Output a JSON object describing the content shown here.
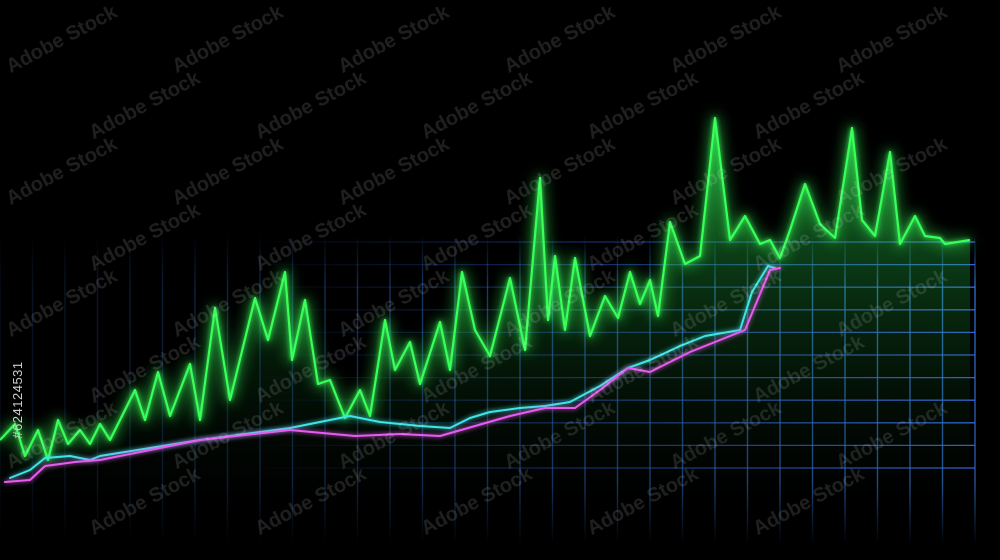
{
  "watermark": {
    "text": "Adobe Stock"
  },
  "side_label": {
    "text": "#624124531"
  },
  "colors": {
    "background": "#000000",
    "green": "#39ff5a",
    "magenta": "#e75cf0",
    "cyan": "#3ee6e6",
    "grid_vertical": "#3a8cff",
    "grid_horizontal": "#2f5bd8",
    "baseline": "#2f8cff"
  },
  "chart_data": {
    "type": "line",
    "xlim": [
      0,
      100
    ],
    "ylim": [
      0,
      100
    ],
    "grid": true,
    "legend": "none",
    "series": [
      {
        "color": "#39ff5a",
        "area": true,
        "x": [
          0,
          1.5,
          2.5,
          3.8,
          4.8,
          5.8,
          6.8,
          8,
          9,
          10,
          11,
          12,
          13.5,
          14.5,
          15.8,
          17,
          19,
          20,
          21.5,
          23,
          25.5,
          26.8,
          28.5,
          29.2,
          30.5,
          31.8,
          33,
          34.5,
          36,
          37,
          38.5,
          39.5,
          41,
          42,
          44,
          45,
          46.2,
          47.5,
          49,
          51,
          52.5,
          54,
          54.8,
          55.5,
          56.5,
          57.5,
          59,
          60.5,
          61.8,
          63,
          64,
          65,
          65.8,
          67,
          68.5,
          70,
          71.5,
          73,
          74.5,
          76,
          77,
          78,
          79,
          80.5,
          82,
          83.5,
          85.2,
          86.2,
          87.5,
          89,
          90,
          91.5,
          92.5,
          94,
          94.5,
          97
        ],
        "y": [
          13,
          17,
          9,
          15.5,
          8,
          18,
          12,
          15.5,
          12,
          17,
          13,
          18,
          25.5,
          18,
          30,
          19,
          32,
          18,
          46,
          23,
          48.5,
          38,
          55,
          33,
          48,
          27,
          28,
          18.5,
          25.5,
          19,
          43,
          30.5,
          37.5,
          27,
          42.5,
          30.5,
          55,
          40.5,
          34,
          53.5,
          35.5,
          78.5,
          43,
          59,
          40.5,
          58.5,
          39,
          49,
          43.5,
          55,
          47,
          53,
          44,
          67.5,
          57,
          59,
          93.5,
          63,
          69,
          62,
          63,
          58.5,
          65.5,
          77,
          67,
          63.5,
          91,
          68,
          64,
          85,
          62,
          69,
          64,
          63.5,
          62,
          63
        ]
      },
      {
        "color": "#3ee6e6",
        "area": false,
        "x": [
          1,
          3,
          4.5,
          7,
          9,
          10,
          15,
          20,
          29,
          34,
          35,
          38,
          42,
          45,
          47,
          49,
          52,
          54.5,
          57,
          60,
          62.8,
          65,
          68,
          70.5,
          74,
          75.2,
          76.8,
          77.5
        ],
        "y": [
          3.5,
          5.5,
          8.5,
          9,
          8,
          9,
          11,
          13,
          16,
          18.5,
          19,
          17.5,
          16.5,
          16,
          18.5,
          20,
          21,
          21.5,
          22.5,
          26.5,
          31,
          33,
          36.5,
          39,
          40.5,
          50,
          56.5,
          56
        ]
      },
      {
        "color": "#e75cf0",
        "area": false,
        "x": [
          0.5,
          3,
          4.5,
          7.5,
          10,
          14,
          20,
          29,
          35.5,
          40,
          44,
          47.5,
          51,
          54.5,
          57.5,
          60,
          62.8,
          65,
          69,
          72,
          74.5,
          77,
          78
        ],
        "y": [
          2.5,
          3,
          6.5,
          7.5,
          8,
          10,
          13,
          15.5,
          14,
          14.5,
          14,
          16.5,
          19,
          21,
          21,
          25.5,
          31,
          30,
          35,
          38,
          40.5,
          55.5,
          56
        ]
      }
    ]
  }
}
